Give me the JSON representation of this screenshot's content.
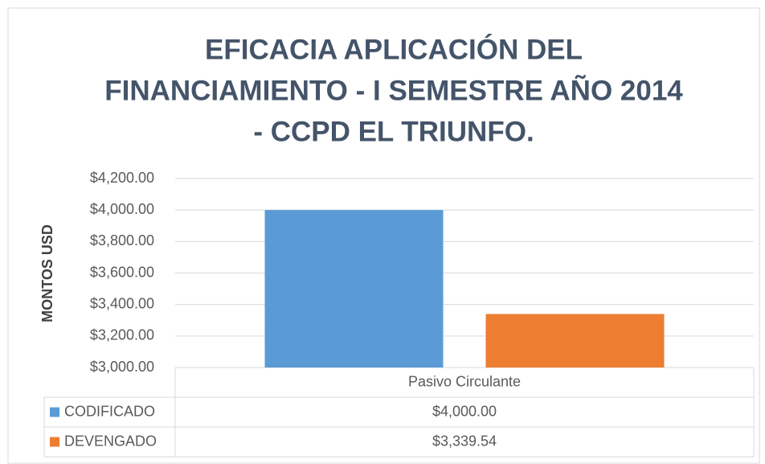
{
  "chart_data": {
    "type": "bar",
    "title": [
      "EFICACIA APLICACIÓN DEL",
      "FINANCIAMIENTO - I SEMESTRE AÑO 2014",
      "- CCPD EL TRIUNFO."
    ],
    "y_label": "MONTOS USD",
    "categories": [
      "Pasivo Circulante"
    ],
    "series": [
      {
        "name": "CODIFICADO",
        "color": "#5b9bd5",
        "values": [
          4000
        ],
        "value_labels": [
          "$4,000.00"
        ]
      },
      {
        "name": "DEVENGADO",
        "color": "#ed7d31",
        "values": [
          3339.54
        ],
        "value_labels": [
          "$3,339.54"
        ]
      }
    ],
    "ylim": [
      3000,
      4200
    ],
    "yticks": [
      {
        "value": 3000,
        "label": "$3,000.00"
      },
      {
        "value": 3200,
        "label": "$3,200.00"
      },
      {
        "value": 3400,
        "label": "$3,400.00"
      },
      {
        "value": 3600,
        "label": "$3,600.00"
      },
      {
        "value": 3800,
        "label": "$3,800.00"
      },
      {
        "value": 4000,
        "label": "$4,000.00"
      },
      {
        "value": 4200,
        "label": "$4,200.00"
      }
    ],
    "grid": true,
    "data_table": true
  }
}
